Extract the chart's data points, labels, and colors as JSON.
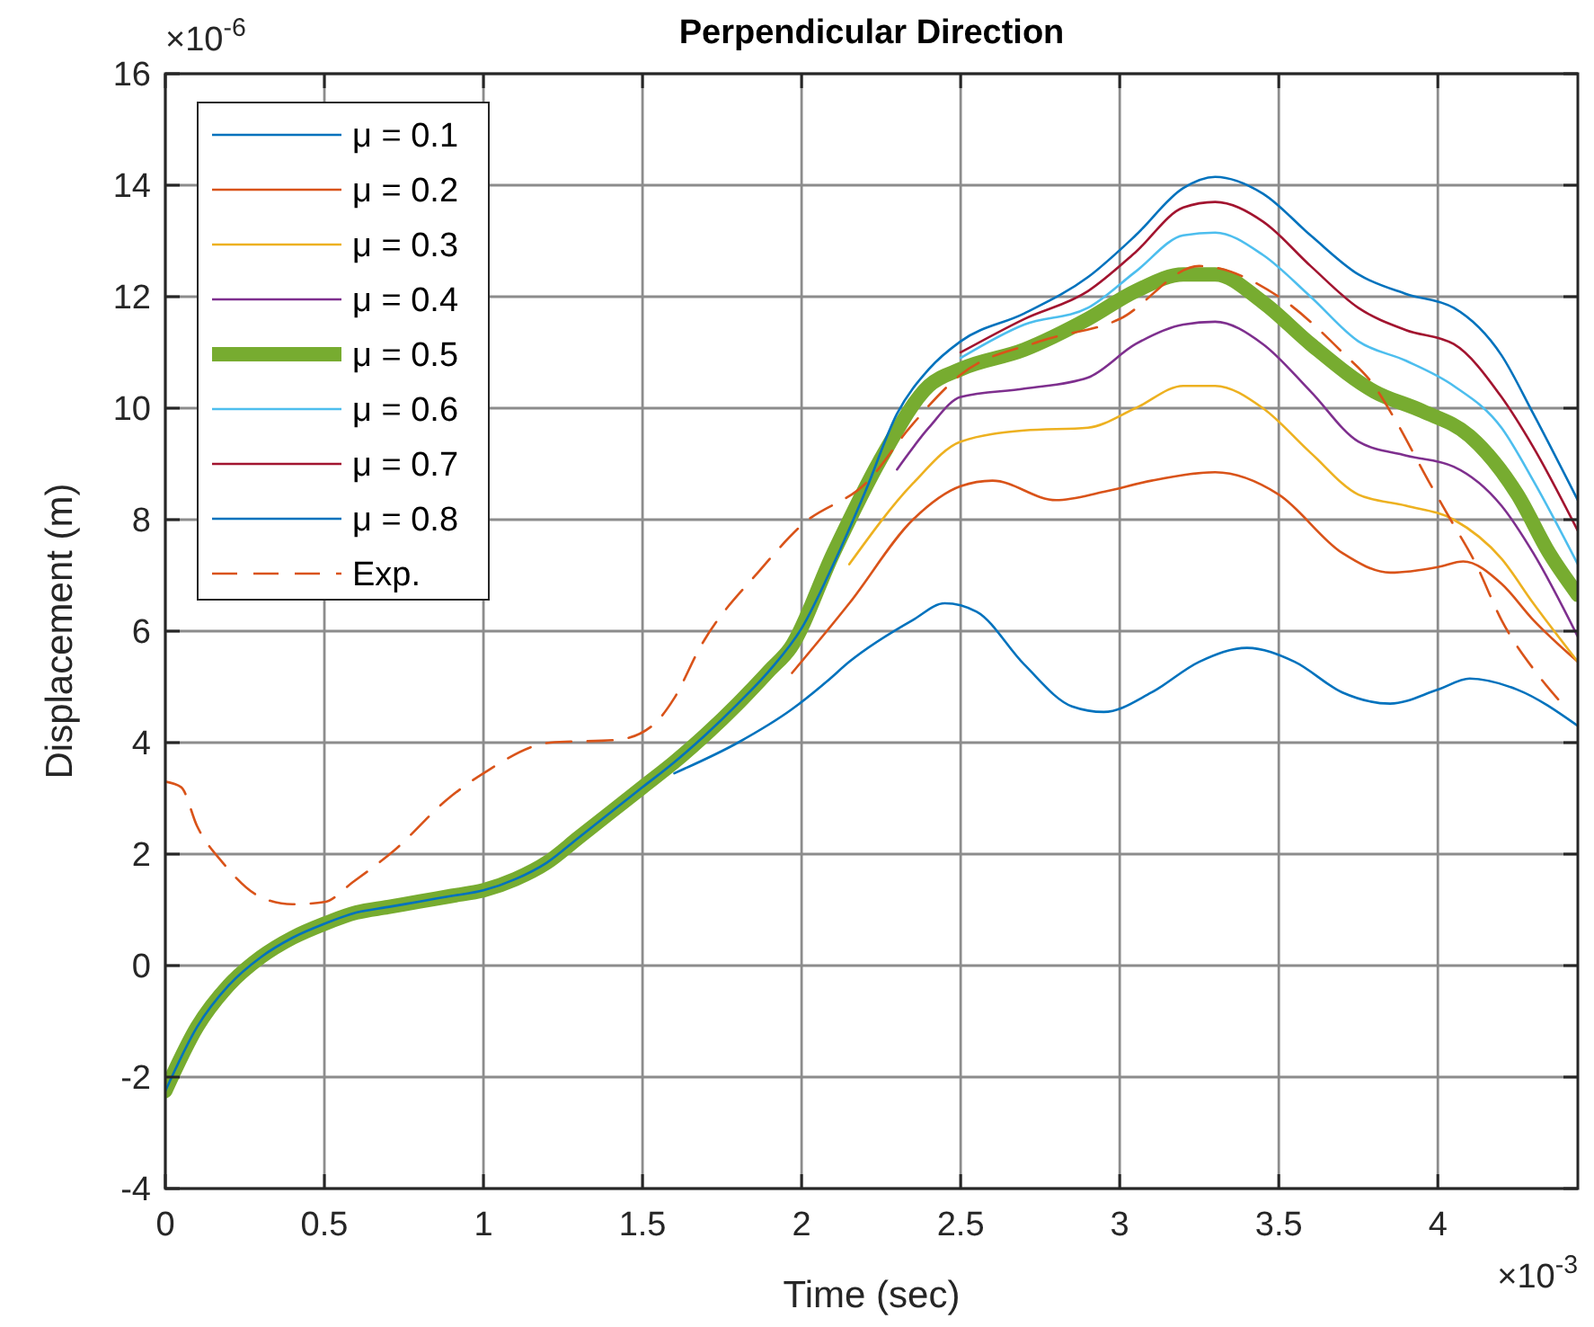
{
  "chart_data": {
    "type": "line",
    "title": "Perpendicular Direction",
    "xlabel": "Time (sec)",
    "ylabel": "Displacement (m)",
    "annotations": [
      "×10$^{-6}$",
      "×10$^{-3}$"
    ],
    "xlim": [
      0,
      4.44
    ],
    "ylim": [
      -4,
      16
    ],
    "xticks": [
      0,
      0.5,
      1,
      1.5,
      2,
      2.5,
      3,
      3.5,
      4
    ],
    "yticks": [
      -4,
      -2,
      0,
      2,
      4,
      6,
      8,
      10,
      12,
      14,
      16
    ],
    "grid": true,
    "legend": "top left",
    "marker": "none",
    "series": [
      {
        "name": "μ = 0.1",
        "color": "#0072bd",
        "x": [
          1.6,
          1.8,
          1.97,
          2.08,
          2.15,
          2.35,
          2.45,
          2.55,
          2.7,
          2.85,
          2.95,
          3.1,
          3.25,
          3.4,
          3.55,
          3.7,
          3.85,
          4.0,
          4.1,
          4.25,
          4.44
        ],
        "values": [
          3.45,
          4.0,
          4.6,
          5.1,
          5.45,
          6.2,
          6.5,
          6.35,
          5.4,
          4.65,
          4.55,
          4.9,
          5.45,
          5.7,
          5.45,
          4.9,
          4.7,
          4.95,
          5.15,
          4.95,
          4.3
        ]
      },
      {
        "name": "μ = 0.2",
        "color": "#d95319",
        "x": [
          1.97,
          2.15,
          2.35,
          2.5,
          2.6,
          2.8,
          2.95,
          3.1,
          3.3,
          3.5,
          3.7,
          3.85,
          4.0,
          4.08,
          4.2,
          4.3,
          4.44
        ],
        "values": [
          5.25,
          6.5,
          8.0,
          8.6,
          8.7,
          8.35,
          8.5,
          8.7,
          8.85,
          8.45,
          7.4,
          7.05,
          7.15,
          7.25,
          6.85,
          6.2,
          5.45
        ]
      },
      {
        "name": "μ = 0.3",
        "color": "#edb120",
        "x": [
          2.15,
          2.35,
          2.5,
          2.7,
          2.9,
          3.05,
          3.2,
          3.3,
          3.45,
          3.6,
          3.75,
          3.9,
          4.05,
          4.2,
          4.3,
          4.44
        ],
        "values": [
          7.2,
          8.65,
          9.4,
          9.6,
          9.65,
          10.0,
          10.4,
          10.4,
          10.0,
          9.2,
          8.45,
          8.25,
          8.0,
          7.3,
          6.5,
          5.45
        ]
      },
      {
        "name": "μ = 0.4",
        "color": "#7e2f8e",
        "x": [
          2.3,
          2.4,
          2.5,
          2.7,
          2.9,
          3.05,
          3.2,
          3.3,
          3.45,
          3.6,
          3.75,
          3.9,
          4.05,
          4.2,
          4.3,
          4.44
        ],
        "values": [
          8.9,
          9.65,
          10.2,
          10.35,
          10.55,
          11.15,
          11.5,
          11.55,
          11.15,
          10.3,
          9.4,
          9.15,
          8.95,
          8.25,
          7.4,
          5.9
        ]
      },
      {
        "name": "μ = 0.5",
        "color": "#77ac30",
        "x": [
          0,
          0.1,
          0.2,
          0.3,
          0.4,
          0.5,
          0.6,
          0.7,
          0.8,
          0.9,
          1.0,
          1.1,
          1.2,
          1.3,
          1.4,
          1.5,
          1.6,
          1.7,
          1.8,
          1.9,
          1.965,
          2.1,
          2.25,
          2.4,
          2.5,
          2.7,
          2.9,
          3.05,
          3.2,
          3.3,
          3.45,
          3.6,
          3.8,
          3.95,
          4.1,
          4.25,
          4.35,
          4.44
        ],
        "values": [
          -2.25,
          -1.1,
          -0.35,
          0.15,
          0.5,
          0.75,
          0.95,
          1.05,
          1.15,
          1.25,
          1.35,
          1.55,
          1.85,
          2.3,
          2.75,
          3.2,
          3.65,
          4.15,
          4.7,
          5.3,
          5.7,
          7.4,
          9.1,
          10.4,
          10.7,
          11.05,
          11.6,
          12.1,
          12.4,
          12.4,
          11.9,
          11.15,
          10.3,
          9.95,
          9.5,
          8.45,
          7.4,
          6.65
        ]
      },
      {
        "name": "μ = 0.6",
        "color": "#4dbeee",
        "x": [
          2.5,
          2.7,
          2.9,
          3.05,
          3.2,
          3.3,
          3.45,
          3.6,
          3.75,
          3.9,
          4.05,
          4.2,
          4.3,
          4.44
        ],
        "values": [
          10.9,
          11.5,
          11.8,
          12.45,
          13.1,
          13.15,
          12.75,
          12.0,
          11.2,
          10.85,
          10.4,
          9.65,
          8.7,
          7.2
        ]
      },
      {
        "name": "μ = 0.7",
        "color": "#a2142f",
        "x": [
          2.5,
          2.7,
          2.9,
          3.05,
          3.2,
          3.3,
          3.45,
          3.6,
          3.75,
          3.9,
          4.05,
          4.2,
          4.3,
          4.44
        ],
        "values": [
          11.0,
          11.6,
          12.1,
          12.8,
          13.6,
          13.7,
          13.35,
          12.55,
          11.8,
          11.4,
          11.15,
          10.2,
          9.3,
          7.8
        ]
      },
      {
        "name": "μ = 0.8",
        "color": "#0072bd",
        "x": [
          0,
          0.1,
          0.2,
          0.3,
          0.4,
          0.5,
          0.6,
          0.7,
          0.8,
          0.9,
          1.0,
          1.1,
          1.2,
          1.3,
          1.4,
          1.5,
          1.6,
          1.7,
          1.8,
          1.9,
          2.0,
          2.1,
          2.2,
          2.3,
          2.4,
          2.5,
          2.7,
          2.9,
          3.05,
          3.2,
          3.3,
          3.45,
          3.6,
          3.75,
          3.9,
          4.05,
          4.2,
          4.3,
          4.44
        ],
        "values": [
          -2.25,
          -1.1,
          -0.35,
          0.15,
          0.5,
          0.75,
          0.95,
          1.05,
          1.15,
          1.25,
          1.35,
          1.55,
          1.85,
          2.3,
          2.75,
          3.2,
          3.65,
          4.15,
          4.7,
          5.3,
          6.05,
          7.2,
          8.5,
          9.9,
          10.7,
          11.2,
          11.7,
          12.35,
          13.1,
          13.95,
          14.15,
          13.85,
          13.1,
          12.4,
          12.05,
          11.8,
          10.95,
          9.9,
          8.35
        ]
      },
      {
        "name": "Exp.",
        "color": "#d95319",
        "line_style": "dashed",
        "x": [
          0,
          0.05,
          0.1,
          0.18,
          0.31,
          0.4,
          0.5,
          0.59,
          0.72,
          0.89,
          1.0,
          1.21,
          1.42,
          1.53,
          1.6,
          1.68,
          1.87,
          2.0,
          2.21,
          2.34,
          2.5,
          2.75,
          3.0,
          3.25,
          3.5,
          3.7,
          3.8,
          3.86,
          3.97,
          4.04,
          4.12,
          4.2,
          4.31,
          4.39
        ],
        "values": [
          3.3,
          3.2,
          2.5,
          1.85,
          1.2,
          1.1,
          1.14,
          1.5,
          2.07,
          3.0,
          3.45,
          4.0,
          4.05,
          4.3,
          4.8,
          5.7,
          7.1,
          7.9,
          8.7,
          9.65,
          10.6,
          11.2,
          11.6,
          12.55,
          12.0,
          11.0,
          10.4,
          9.85,
          8.7,
          8.0,
          7.2,
          6.2,
          5.25,
          4.7
        ]
      }
    ]
  }
}
